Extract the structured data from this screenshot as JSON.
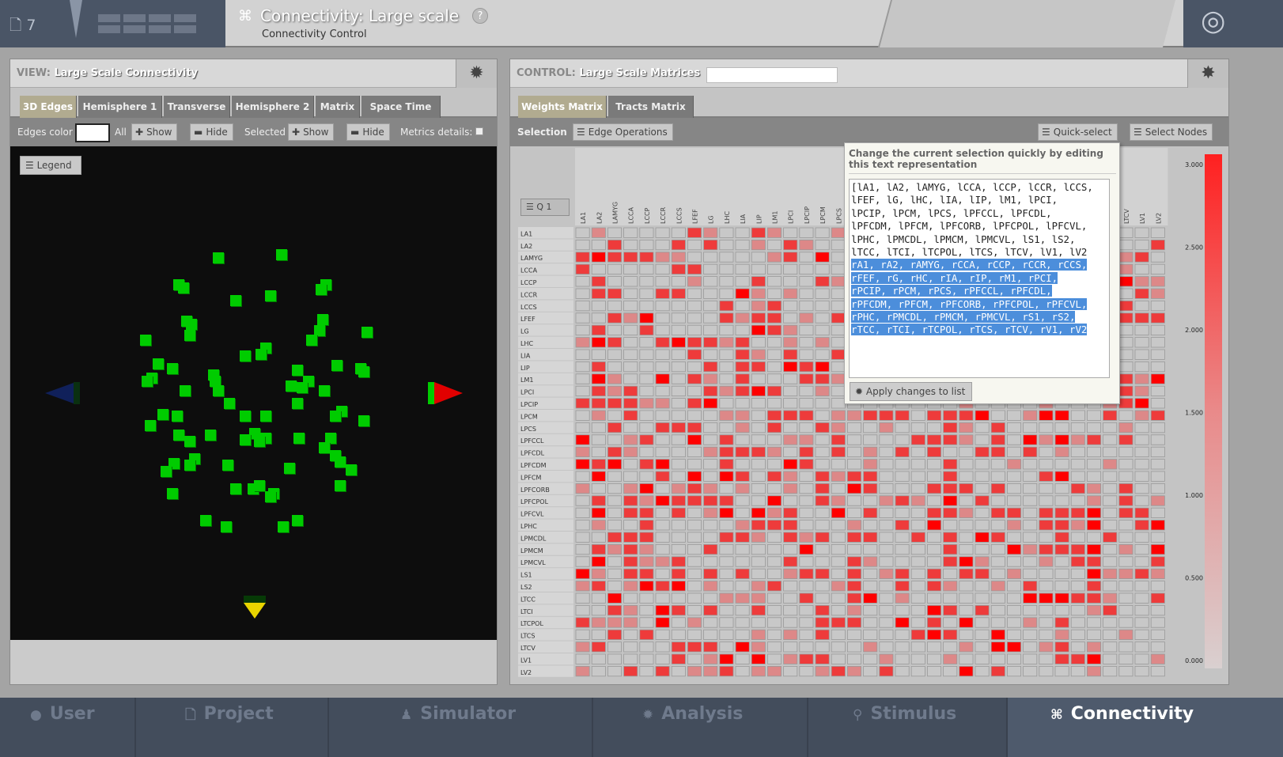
{
  "header": {
    "project_number": "7",
    "title": "Connectivity: Large scale",
    "subtitle": "Connectivity Control",
    "help": "?"
  },
  "view": {
    "label": "VIEW:",
    "name": "Large Scale Connectivity",
    "tabs": [
      "3D Edges",
      "Hemisphere 1",
      "Transverse",
      "Hemisphere 2",
      "Matrix",
      "Space Time"
    ],
    "toolbar": {
      "edges_color": "Edges color",
      "all": "All",
      "show": "Show",
      "hide": "Hide",
      "selected": "Selected",
      "metrics": "Metrics details:"
    },
    "legend": "Legend"
  },
  "control": {
    "label": "CONTROL:",
    "name": "Large Scale Matrices",
    "tabs": [
      "Weights Matrix",
      "Tracts Matrix"
    ],
    "selection": "Selection",
    "edge_ops": "Edge Operations",
    "quick_select": "Quick-select",
    "select_nodes": "Select Nodes",
    "q1": "Q 1"
  },
  "regions": [
    "lA1",
    "lA2",
    "lAMYG",
    "lCCA",
    "lCCP",
    "lCCR",
    "lCCS",
    "lFEF",
    "lG",
    "lHC",
    "lIA",
    "lIP",
    "lM1",
    "lPCI",
    "lPCIP",
    "lPCM",
    "lPCS",
    "lPFCCL",
    "lPFCDL",
    "lPFCDM",
    "lPFCM",
    "lPFCORB",
    "lPFCPOL",
    "lPFCVL",
    "lPHC",
    "lPMCDL",
    "lPMCM",
    "lPMCVL",
    "lS1",
    "lS2",
    "lTCC",
    "lTCI",
    "lTCPOL",
    "lTCS",
    "lTCV",
    "lV1",
    "lV2"
  ],
  "colorbar": {
    "labels": [
      "3.000",
      "2.500",
      "2.000",
      "1.500",
      "1.000",
      "0.500",
      "0.000"
    ]
  },
  "popup": {
    "title": "Change the current selection quickly by editing this text representation",
    "lines": [
      "[lA1, lA2, lAMYG, lCCA, lCCP, lCCR, lCCS,",
      "lFEF, lG, lHC, lIA, lIP, lM1, lPCI,",
      "lPCIP, lPCM, lPCS, lPFCCL, lPFCDL,",
      "lPFCDM, lPFCM, lPFCORB, lPFCPOL, lPFCVL,",
      "lPHC, lPMCDL, lPMCM, lPMCVL, lS1, lS2,",
      "lTCC, lTCI, lTCPOL, lTCS, lTCV, lV1, lV2"
    ],
    "sel_lines": [
      "rA1, rA2, rAMYG, rCCA, rCCP, rCCR, rCCS,",
      "rFEF, rG, rHC, rIA, rIP, rM1, rPCI,",
      "rPCIP, rPCM, rPCS, rPFCCL, rPFCDL,",
      "rPFCDM, rPFCM, rPFCORB, rPFCPOL, rPFCVL,",
      "rPHC, rPMCDL, rPMCM, rPMCVL, rS1, rS2,",
      "rTCC, rTCI, rTCPOL, rTCS, rTCV, rV1, rV2"
    ],
    "apply": "Apply changes to list"
  },
  "nav": [
    {
      "label": "User",
      "icon": "user-icon"
    },
    {
      "label": "Project",
      "icon": "document-icon"
    },
    {
      "label": "Simulator",
      "icon": "simulator-icon"
    },
    {
      "label": "Analysis",
      "icon": "gear-icon"
    },
    {
      "label": "Stimulus",
      "icon": "pin-icon"
    },
    {
      "label": "Connectivity",
      "icon": "connectivity-icon",
      "active": true
    }
  ]
}
